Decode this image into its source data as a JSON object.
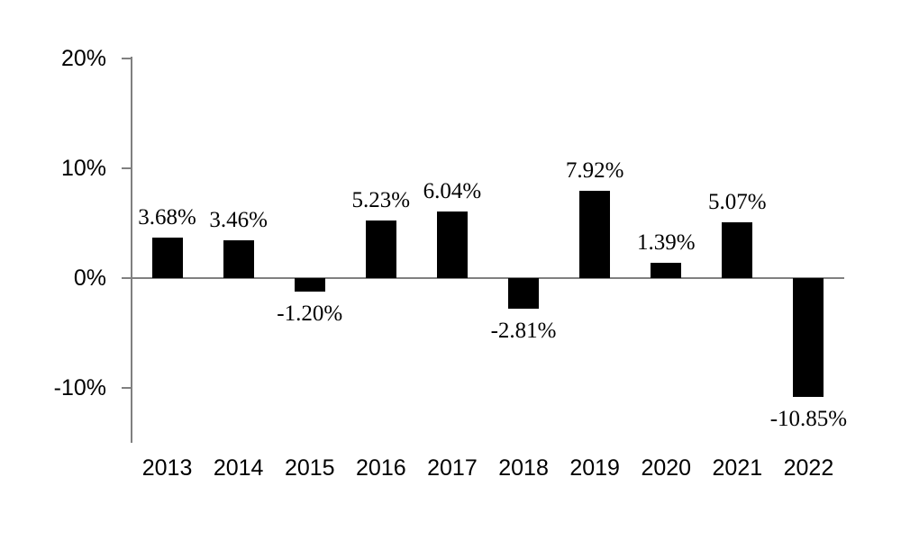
{
  "chart_data": {
    "type": "bar",
    "title": "",
    "xlabel": "",
    "ylabel": "",
    "categories": [
      "2013",
      "2014",
      "2015",
      "2016",
      "2017",
      "2018",
      "2019",
      "2020",
      "2021",
      "2022"
    ],
    "values": [
      3.68,
      3.46,
      -1.2,
      5.23,
      6.04,
      -2.81,
      7.92,
      1.39,
      5.07,
      -10.85
    ],
    "value_labels": [
      "3.68%",
      "3.46%",
      "-1.20%",
      "5.23%",
      "6.04%",
      "-2.81%",
      "7.92%",
      "1.39%",
      "5.07%",
      "-10.85%"
    ],
    "y_ticks": [
      {
        "value": 20,
        "label": "20%"
      },
      {
        "value": 10,
        "label": "10%"
      },
      {
        "value": 0,
        "label": "0%"
      },
      {
        "value": -10,
        "label": "-10%"
      }
    ],
    "ylim": [
      -15,
      20
    ],
    "grid": false,
    "legend_position": "none",
    "bar_color": "#000000",
    "axis_color": "#808080",
    "text_color": "#000000"
  }
}
